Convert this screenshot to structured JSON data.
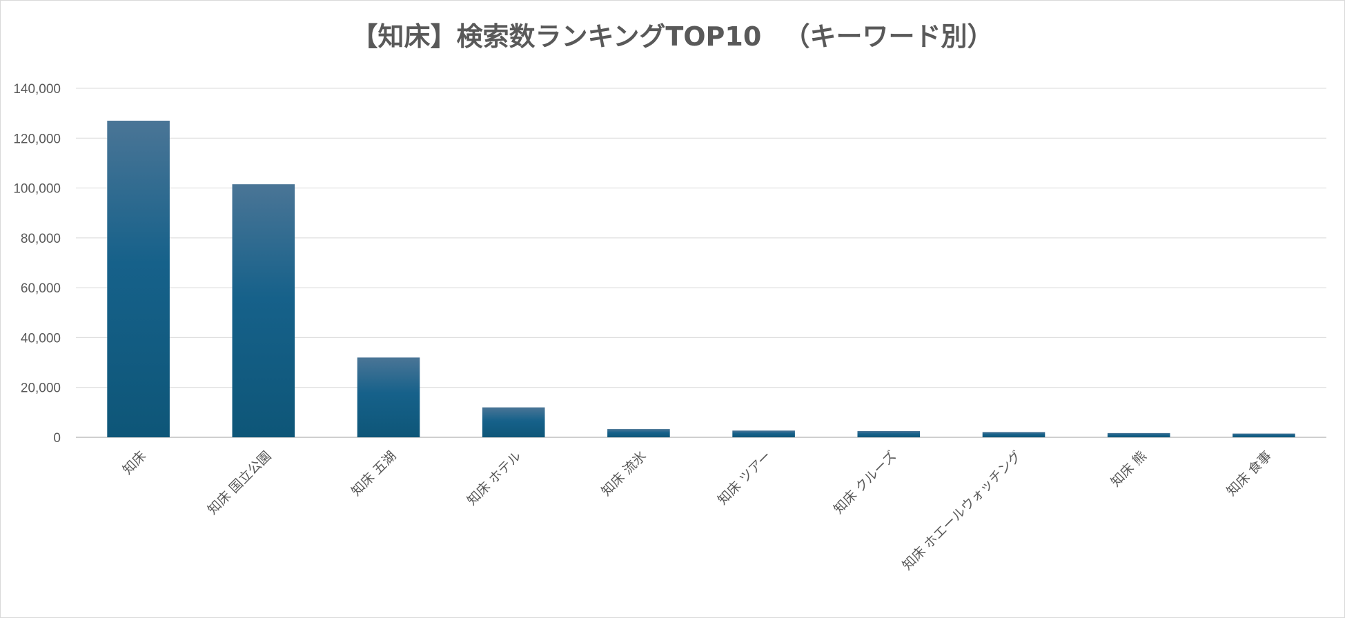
{
  "chart_data": {
    "type": "bar",
    "title": "【知床】検索数ランキングTOP10 　（キーワード別）",
    "xlabel": "",
    "ylabel": "",
    "ylim": [
      0,
      140000
    ],
    "yticks": [
      0,
      20000,
      40000,
      60000,
      80000,
      100000,
      120000,
      140000
    ],
    "ytick_labels": [
      "0",
      "20,000",
      "40,000",
      "60,000",
      "80,000",
      "100,000",
      "120,000",
      "140,000"
    ],
    "categories": [
      "知床",
      "知床 国立公園",
      "知床 五湖",
      "知床 ホテル",
      "知床 流氷",
      "知床 ツアー",
      "知床 クルーズ",
      "知床 ホエールウォッチング",
      "知床 熊",
      "知床 食事"
    ],
    "values": [
      127000,
      101500,
      32000,
      12000,
      3300,
      2700,
      2500,
      2100,
      1700,
      1500
    ],
    "grid": true,
    "legend": "none",
    "colors": {
      "bar_top": "#4a7596",
      "bar_mid": "#16618a",
      "bar_bottom": "#0e5678",
      "grid": "#d9d9d9",
      "axis": "#bfbfbf",
      "text": "#595959"
    }
  }
}
